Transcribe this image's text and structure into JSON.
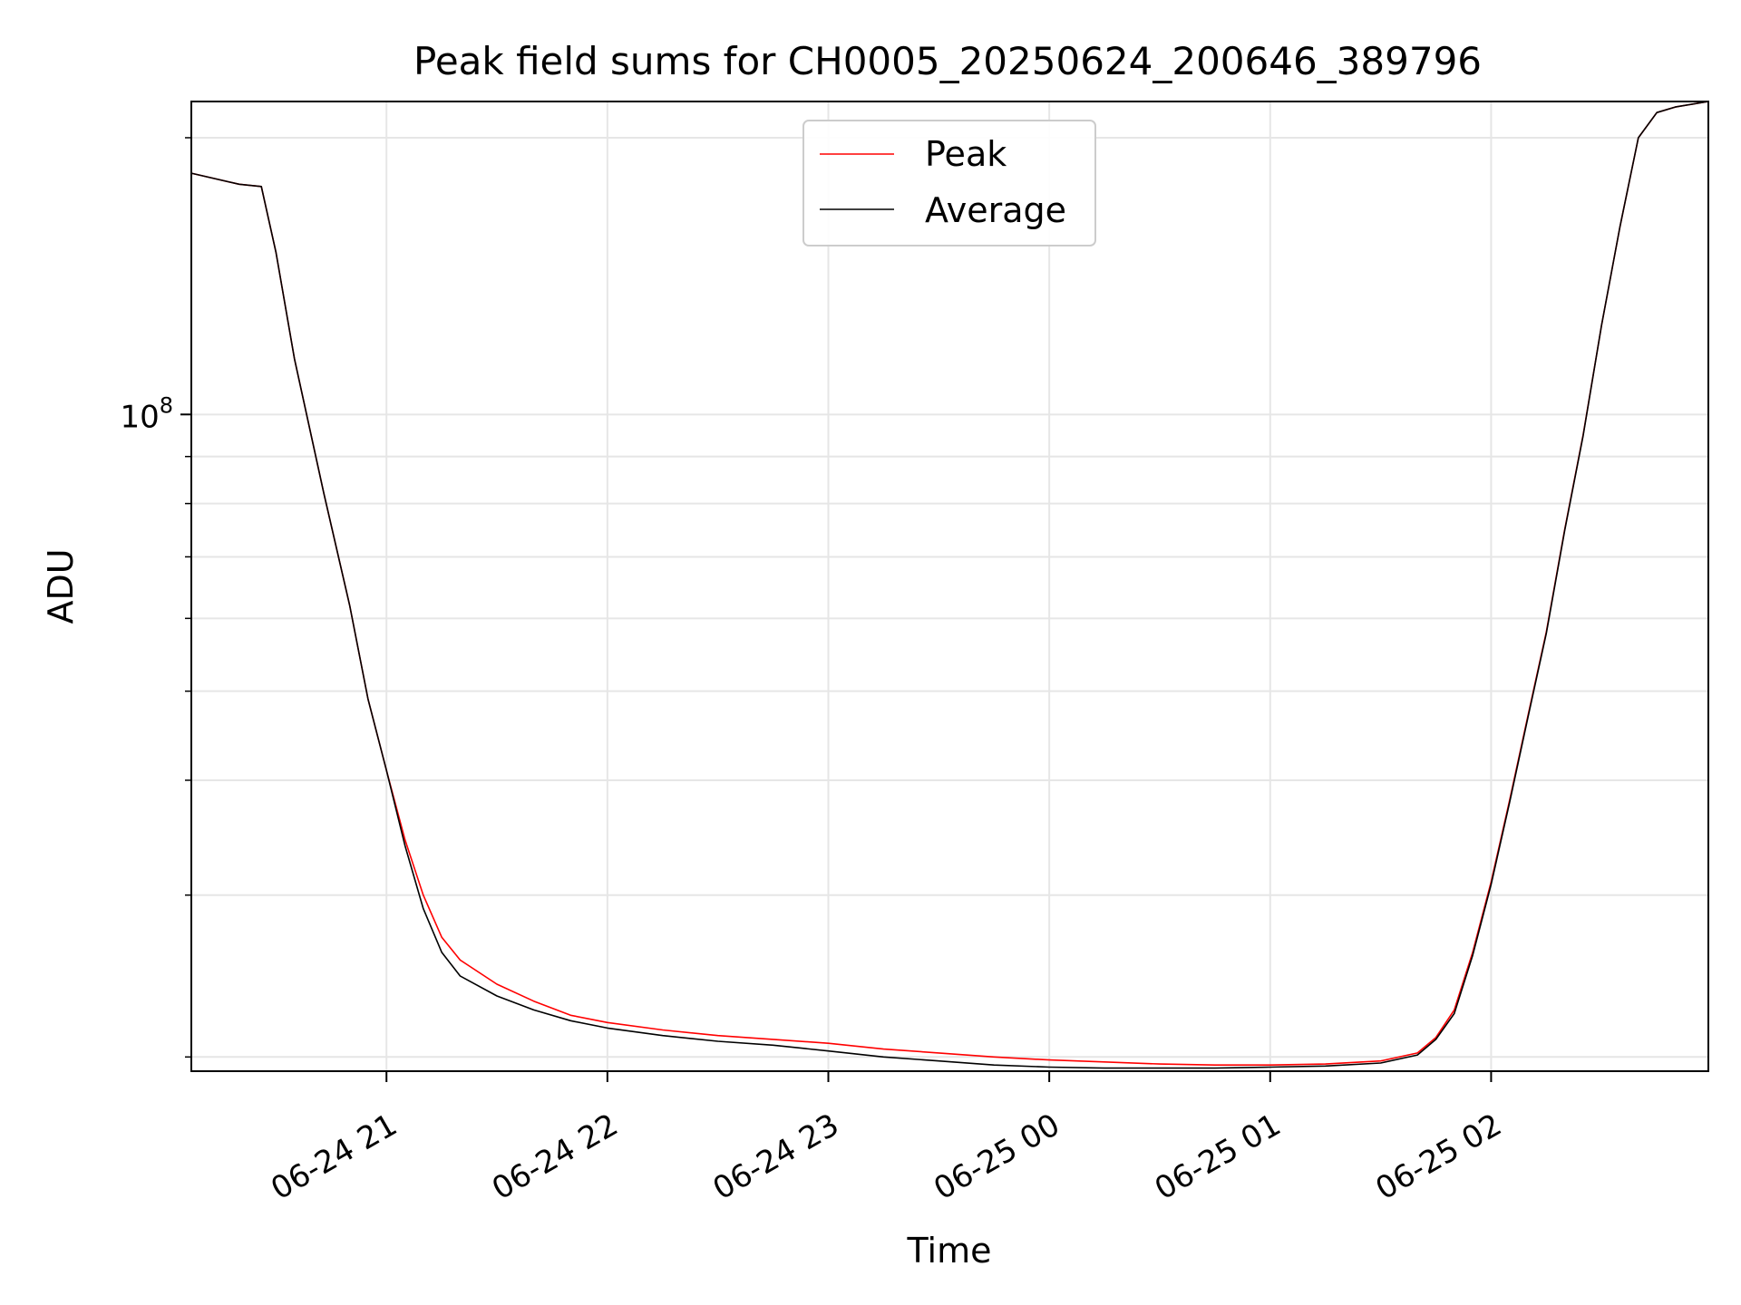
{
  "chart_data": {
    "type": "line",
    "title": "Peak field sums for CH0005_20250624_200646_389796",
    "xlabel": "Time",
    "ylabel": "ADU",
    "yscale": "log",
    "xlim": [
      "2025-06-24 20:07",
      "2025-06-25 02:59"
    ],
    "ylim": [
      19300000,
      219000000
    ],
    "x_ticks": [
      {
        "value": "2025-06-24 21:00",
        "label": "06-24 21"
      },
      {
        "value": "2025-06-24 22:00",
        "label": "06-24 22"
      },
      {
        "value": "2025-06-24 23:00",
        "label": "06-24 23"
      },
      {
        "value": "2025-06-25 00:00",
        "label": "06-25 00"
      },
      {
        "value": "2025-06-25 01:00",
        "label": "06-25 01"
      },
      {
        "value": "2025-06-25 02:00",
        "label": "06-25 02"
      }
    ],
    "y_ticks": [
      {
        "value": 100000000,
        "base": "10",
        "exponent": "8"
      }
    ],
    "grid": true,
    "legend_position": "upper center",
    "x": [
      "2025-06-24 20:07",
      "2025-06-24 20:20",
      "2025-06-24 20:26",
      "2025-06-24 20:30",
      "2025-06-24 20:35",
      "2025-06-24 20:43",
      "2025-06-24 20:50",
      "2025-06-24 20:55",
      "2025-06-24 21:00",
      "2025-06-24 21:05",
      "2025-06-24 21:10",
      "2025-06-24 21:15",
      "2025-06-24 21:20",
      "2025-06-24 21:30",
      "2025-06-24 21:40",
      "2025-06-24 21:50",
      "2025-06-24 22:00",
      "2025-06-24 22:15",
      "2025-06-24 22:30",
      "2025-06-24 22:45",
      "2025-06-24 23:00",
      "2025-06-24 23:15",
      "2025-06-24 23:30",
      "2025-06-24 23:45",
      "2025-06-25 00:00",
      "2025-06-25 00:15",
      "2025-06-25 00:30",
      "2025-06-25 00:45",
      "2025-06-25 01:00",
      "2025-06-25 01:15",
      "2025-06-25 01:30",
      "2025-06-25 01:40",
      "2025-06-25 01:45",
      "2025-06-25 01:50",
      "2025-06-25 01:55",
      "2025-06-25 02:00",
      "2025-06-25 02:05",
      "2025-06-25 02:10",
      "2025-06-25 02:15",
      "2025-06-25 02:20",
      "2025-06-25 02:25",
      "2025-06-25 02:30",
      "2025-06-25 02:35",
      "2025-06-25 02:40",
      "2025-06-25 02:45",
      "2025-06-25 02:50",
      "2025-06-25 02:59"
    ],
    "series": [
      {
        "name": "Peak",
        "color": "#ff0000",
        "values": [
          183000000,
          178000000,
          177000000,
          150000000,
          115000000,
          82000000,
          62000000,
          49000000,
          41000000,
          34500000,
          30000000,
          27000000,
          25500000,
          24000000,
          23000000,
          22200000,
          21800000,
          21400000,
          21100000,
          20900000,
          20700000,
          20400000,
          20200000,
          20000000,
          19850000,
          19750000,
          19650000,
          19600000,
          19600000,
          19650000,
          19800000,
          20200000,
          21000000,
          22500000,
          26000000,
          31000000,
          38000000,
          47000000,
          58000000,
          75000000,
          95000000,
          125000000,
          160000000,
          200000000,
          213000000,
          216000000,
          219000000
        ]
      },
      {
        "name": "Average",
        "color": "#000000",
        "values": [
          183000000,
          178000000,
          177000000,
          150000000,
          115000000,
          82000000,
          62000000,
          49000000,
          41000000,
          34000000,
          29000000,
          26000000,
          24500000,
          23300000,
          22500000,
          21900000,
          21500000,
          21100000,
          20800000,
          20600000,
          20300000,
          20000000,
          19800000,
          19600000,
          19500000,
          19450000,
          19450000,
          19450000,
          19500000,
          19550000,
          19700000,
          20100000,
          20900000,
          22300000,
          25800000,
          30800000,
          37800000,
          46800000,
          57800000,
          74800000,
          94800000,
          125000000,
          160000000,
          200000000,
          213000000,
          216000000,
          219000000
        ]
      }
    ]
  }
}
